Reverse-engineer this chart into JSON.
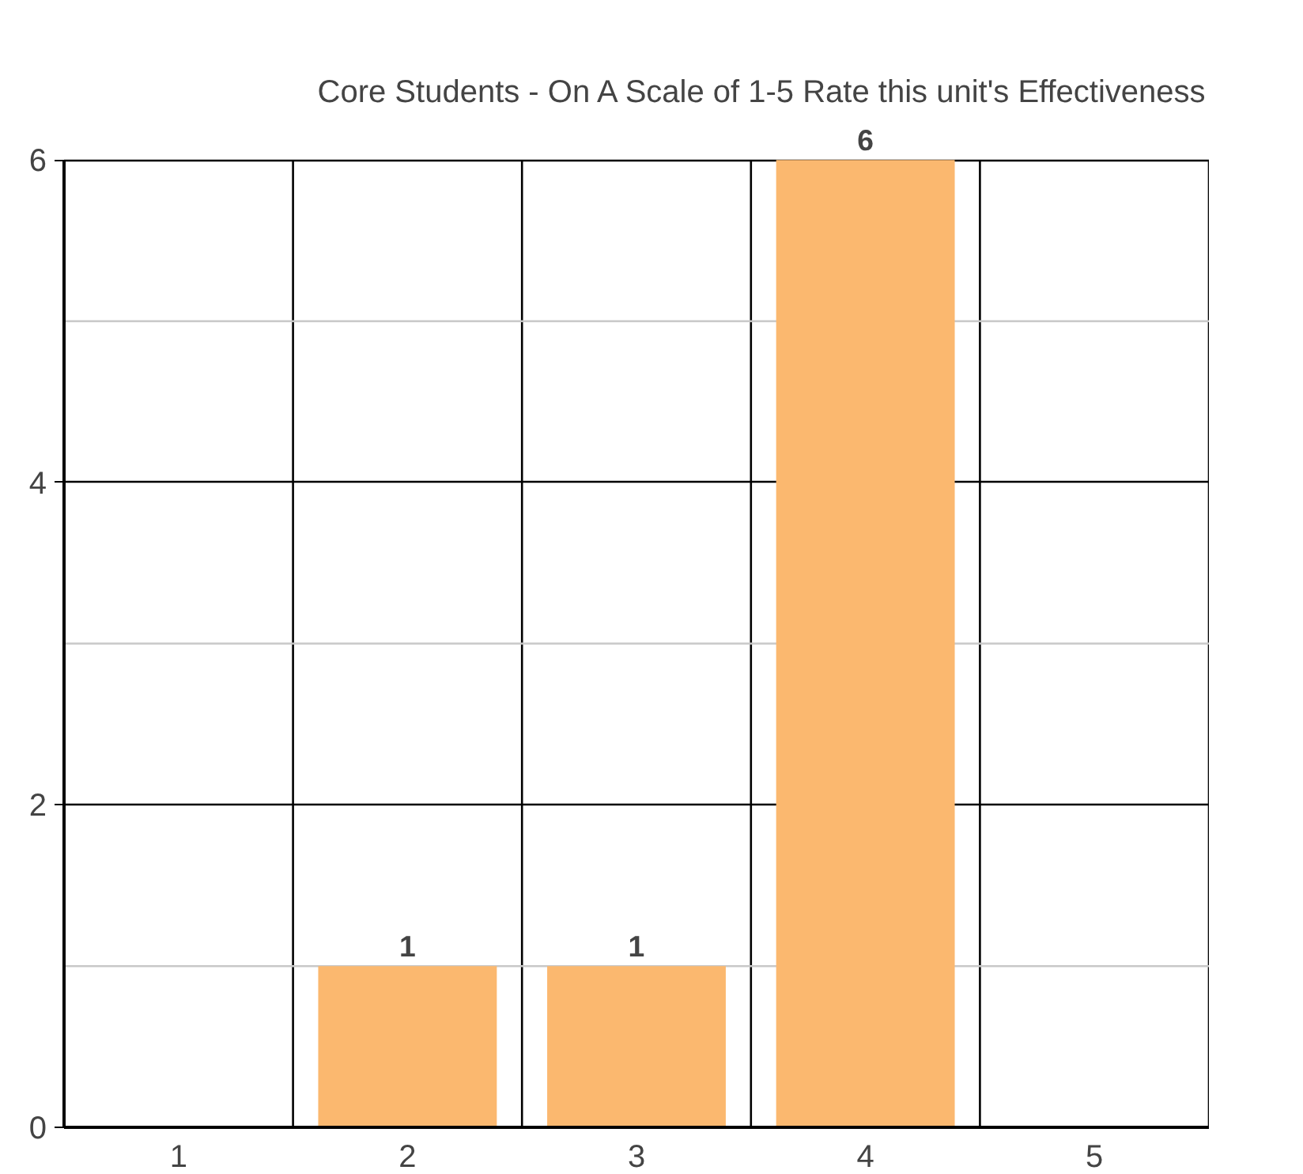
{
  "chart_data": {
    "type": "bar",
    "title": "Core Students - On A Scale of 1-5 Rate this unit's Effectiveness",
    "categories": [
      "1",
      "2",
      "3",
      "4",
      "5"
    ],
    "values": [
      0,
      1,
      1,
      6,
      0
    ],
    "value_labels": [
      null,
      "1",
      "1",
      "6",
      null
    ],
    "color": "#fbb86f",
    "ylim": [
      0,
      6
    ],
    "yticks": [
      0,
      {
        "value": 1,
        "label": null
      },
      2,
      {
        "value": 3,
        "label": null
      },
      4,
      {
        "value": 5,
        "label": null
      },
      6
    ],
    "grid": true
  }
}
